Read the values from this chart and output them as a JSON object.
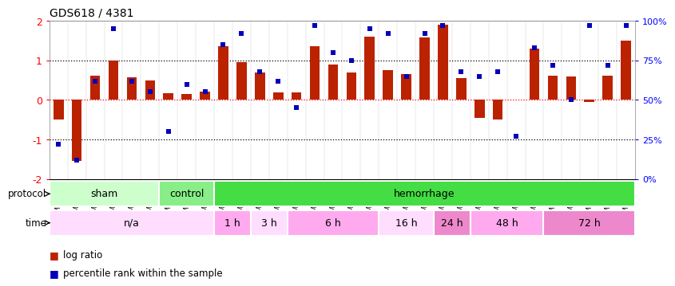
{
  "title": "GDS618 / 4381",
  "samples": [
    "GSM16636",
    "GSM16640",
    "GSM16641",
    "GSM16642",
    "GSM16643",
    "GSM16644",
    "GSM16637",
    "GSM16638",
    "GSM16639",
    "GSM16645",
    "GSM16646",
    "GSM16647",
    "GSM16648",
    "GSM16649",
    "GSM16650",
    "GSM16651",
    "GSM16652",
    "GSM16653",
    "GSM16654",
    "GSM16655",
    "GSM16656",
    "GSM16657",
    "GSM16658",
    "GSM16659",
    "GSM16660",
    "GSM16661",
    "GSM16662",
    "GSM16663",
    "GSM16664",
    "GSM16666",
    "GSM16667",
    "GSM16668"
  ],
  "log_ratio": [
    -0.5,
    -1.55,
    0.62,
    1.0,
    0.57,
    0.5,
    0.17,
    0.15,
    0.2,
    1.35,
    0.95,
    0.7,
    0.18,
    0.18,
    1.35,
    0.9,
    0.7,
    1.6,
    0.75,
    0.65,
    1.58,
    1.9,
    0.55,
    -0.45,
    -0.5,
    0.0,
    1.3,
    0.62,
    0.6,
    -0.05,
    0.62,
    1.5
  ],
  "percentile": [
    22,
    12,
    62,
    95,
    62,
    55,
    30,
    60,
    55,
    85,
    92,
    68,
    62,
    45,
    97,
    80,
    75,
    95,
    92,
    65,
    92,
    97,
    68,
    65,
    68,
    27,
    83,
    72,
    50,
    97,
    72,
    97
  ],
  "protocol_groups": [
    {
      "label": "sham",
      "start": 0,
      "end": 6,
      "color": "#ccffcc"
    },
    {
      "label": "control",
      "start": 6,
      "end": 9,
      "color": "#88ee88"
    },
    {
      "label": "hemorrhage",
      "start": 9,
      "end": 32,
      "color": "#44dd44"
    }
  ],
  "time_groups": [
    {
      "label": "n/a",
      "start": 0,
      "end": 9,
      "color": "#ffddff"
    },
    {
      "label": "1 h",
      "start": 9,
      "end": 11,
      "color": "#ffaaee"
    },
    {
      "label": "3 h",
      "start": 11,
      "end": 13,
      "color": "#ffddff"
    },
    {
      "label": "6 h",
      "start": 13,
      "end": 18,
      "color": "#ffaaee"
    },
    {
      "label": "16 h",
      "start": 18,
      "end": 21,
      "color": "#ffddff"
    },
    {
      "label": "24 h",
      "start": 21,
      "end": 23,
      "color": "#ee88cc"
    },
    {
      "label": "48 h",
      "start": 23,
      "end": 27,
      "color": "#ffaaee"
    },
    {
      "label": "72 h",
      "start": 27,
      "end": 32,
      "color": "#ee88cc"
    }
  ],
  "bar_color": "#bb2200",
  "dot_color": "#0000bb",
  "ylim": [
    -2,
    2
  ],
  "y2lim": [
    0,
    100
  ],
  "yticks_left": [
    -2,
    -1,
    0,
    1,
    2
  ],
  "yticks_right": [
    0,
    25,
    50,
    75,
    100
  ],
  "background_color": "#ffffff"
}
